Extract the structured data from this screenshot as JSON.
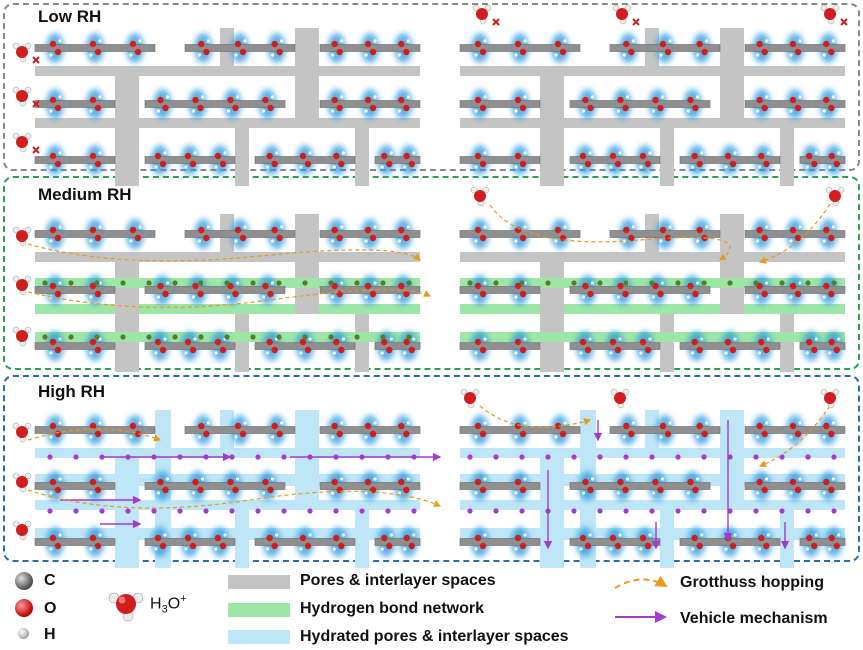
{
  "panels": [
    {
      "title": "Low RH",
      "color": "#888888"
    },
    {
      "title": "Medium RH",
      "color": "#2e9e4f"
    },
    {
      "title": "High RH",
      "color": "#2c6aa8"
    }
  ],
  "legend": {
    "carbon": "C",
    "oxygen": "O",
    "hydrogen": "H",
    "hydronium_base": "H",
    "hydronium_sub": "3",
    "hydronium_tail": "O",
    "hydronium_sup": "+",
    "pores": "Pores & interlayer spaces",
    "hbond": "Hydrogen bond network",
    "hydrated": "Hydrated pores & interlayer spaces",
    "grotthuss": "Grotthuss hopping",
    "vehicle": "Vehicle mechanism"
  },
  "colors": {
    "pore_gray": "#c4c4c4",
    "hbond_green": "#9de6a8",
    "hydrated_blue": "#bfe6f7",
    "sheet_gray": "#8f8f8f",
    "glow_blue": "#2a9be0",
    "oxygen_red": "#d11d1d",
    "grotthuss_orange": "#e89a1a",
    "vehicle_purple": "#a23bd1"
  }
}
